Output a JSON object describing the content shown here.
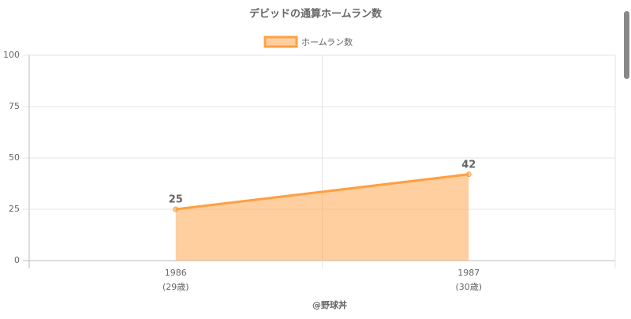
{
  "chart_data": {
    "type": "line",
    "title": "デビッドの通算ホームラン数",
    "categories": [
      "1986",
      "1987"
    ],
    "category_sublabels": [
      "(29歳)",
      "(30歳)"
    ],
    "x_axis_label": "@野球丼",
    "series": [
      {
        "name": "ホームラン数",
        "color": "#ff9f40",
        "values": [
          25,
          42
        ]
      }
    ],
    "fill": true,
    "data_labels": true,
    "ylim": [
      0,
      100
    ],
    "yticks": [
      0,
      25,
      50,
      75,
      100
    ],
    "grid": true,
    "legend": "top"
  }
}
